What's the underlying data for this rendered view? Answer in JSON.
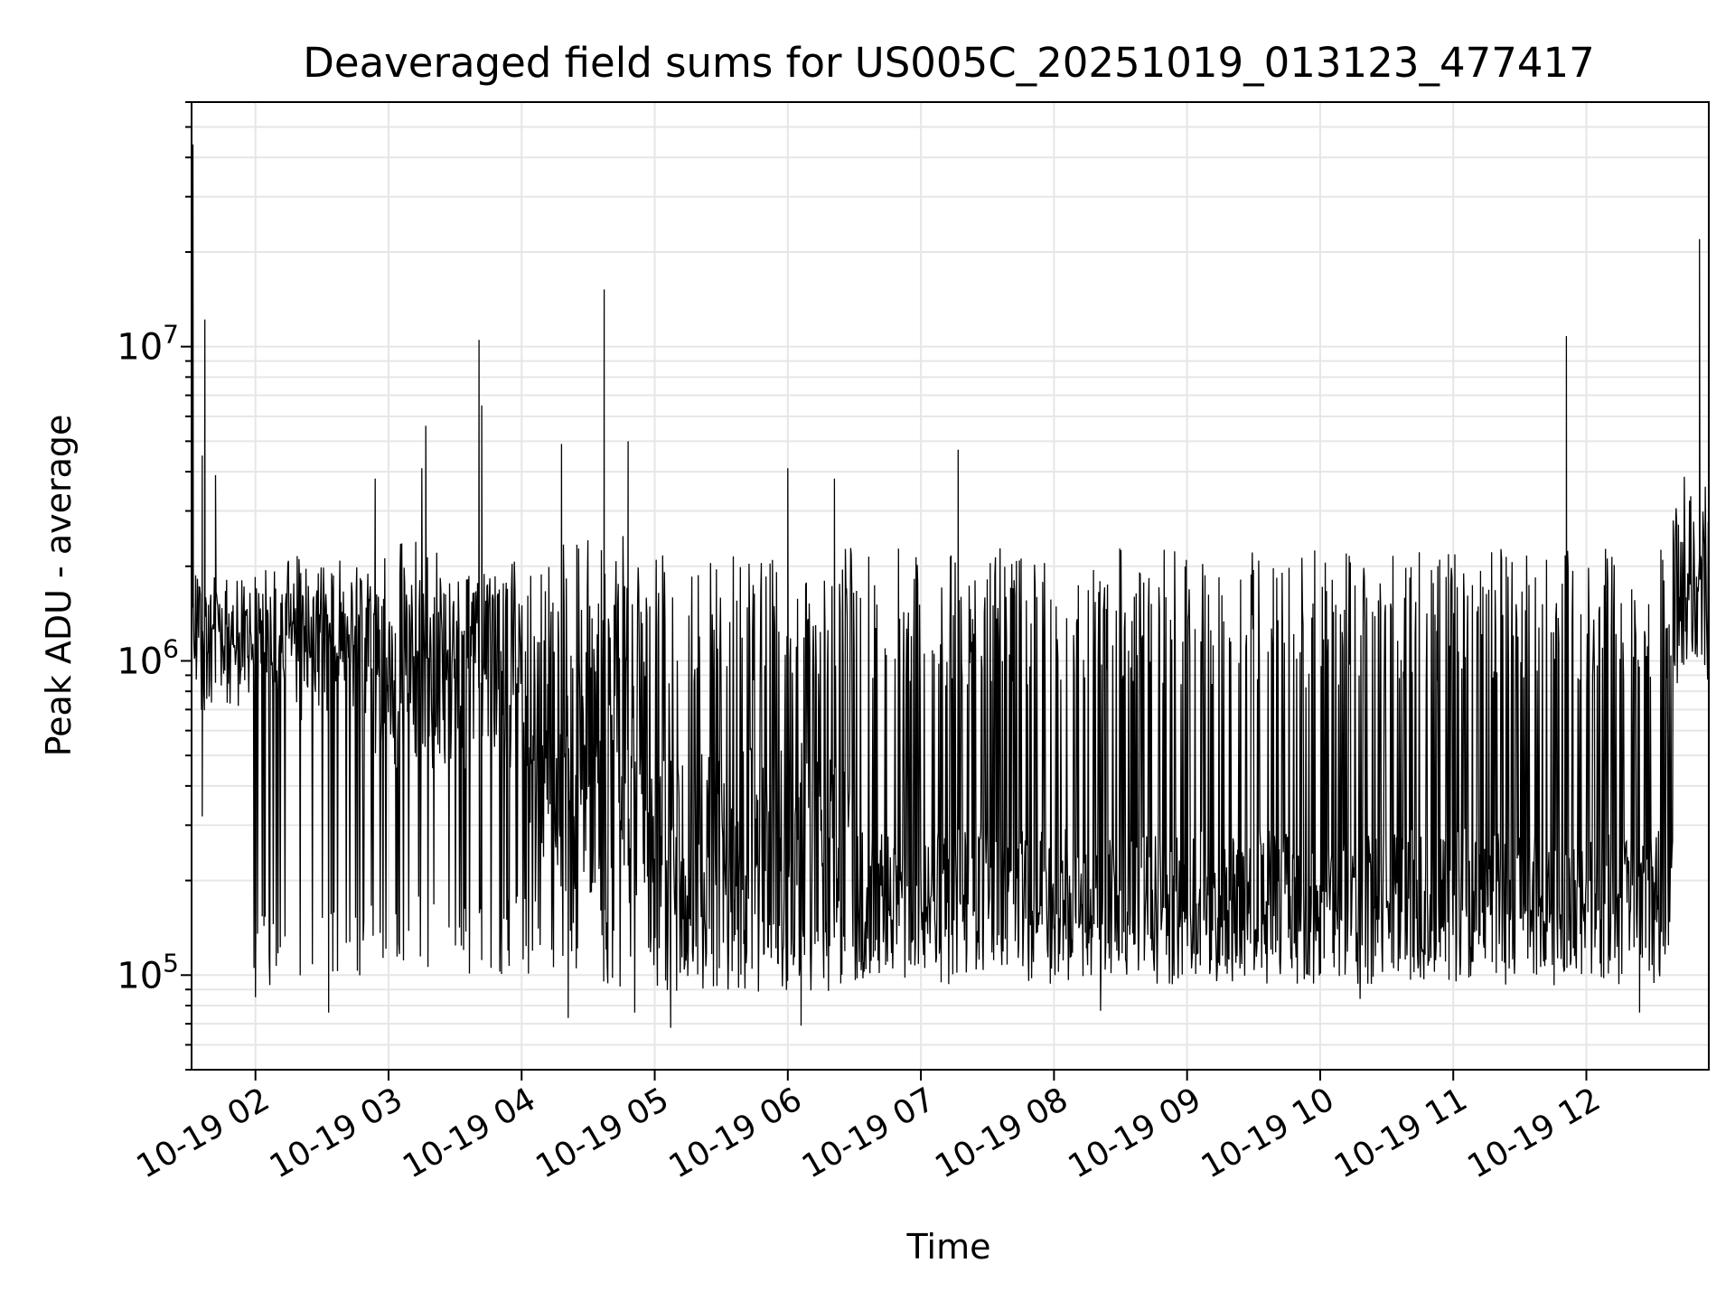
{
  "chart_data": {
    "type": "line",
    "title": "Deaveraged field sums for US005C_20251019_013123_477417",
    "xlabel": "Time",
    "ylabel": "Peak ADU - average",
    "yscale": "log",
    "ylim": [
      50000,
      60000000
    ],
    "xlim_hours": [
      1.52,
      12.92
    ],
    "x_tick_labels": [
      "10-19 02",
      "10-19 03",
      "10-19 04",
      "10-19 05",
      "10-19 06",
      "10-19 07",
      "10-19 08",
      "10-19 09",
      "10-19 10",
      "10-19 11",
      "10-19 12"
    ],
    "x_tick_hours": [
      2,
      3,
      4,
      5,
      6,
      7,
      8,
      9,
      10,
      11,
      12
    ],
    "y_tick_labels": [
      {
        "base": "10",
        "exp": "5",
        "value": 100000
      },
      {
        "base": "10",
        "exp": "6",
        "value": 1000000
      },
      {
        "base": "10",
        "exp": "7",
        "value": 10000000
      }
    ],
    "grid": true,
    "line_color": "#000000",
    "grid_color": "#e6e6e6",
    "series": [
      {
        "name": "Peak ADU - average",
        "segments": [
          {
            "from": 1.52,
            "to": 1.98,
            "base": 1400000,
            "spread": 0.12,
            "high": 1900000,
            "low": 700000
          },
          {
            "from": 1.98,
            "to": 2.8,
            "base": 1300000,
            "spread": 0.22,
            "high": 1800000,
            "low": 90000
          },
          {
            "from": 2.8,
            "to": 4.0,
            "base": 900000,
            "spread": 0.3,
            "high": 2500000,
            "low": 100000
          },
          {
            "from": 4.0,
            "to": 4.95,
            "base": 400000,
            "spread": 0.4,
            "high": 2500000,
            "low": 90000
          },
          {
            "from": 4.95,
            "to": 6.5,
            "base": 220000,
            "spread": 0.4,
            "high": 2300000,
            "low": 90000
          },
          {
            "from": 6.5,
            "to": 12.65,
            "base": 165000,
            "spread": 0.25,
            "high": 2300000,
            "low": 95000
          },
          {
            "from": 12.65,
            "to": 12.92,
            "base": 1700000,
            "spread": 0.25,
            "high": 4000000,
            "low": 700000
          }
        ],
        "spikes": [
          {
            "t": 1.53,
            "v": 44000000
          },
          {
            "t": 1.6,
            "v": 4500000
          },
          {
            "t": 1.6,
            "v": 320000
          },
          {
            "t": 1.62,
            "v": 12200000
          },
          {
            "t": 1.7,
            "v": 3900000
          },
          {
            "t": 2.0,
            "v": 85000
          },
          {
            "t": 2.55,
            "v": 76000
          },
          {
            "t": 2.9,
            "v": 3800000
          },
          {
            "t": 3.25,
            "v": 4100000
          },
          {
            "t": 3.28,
            "v": 5600000
          },
          {
            "t": 3.68,
            "v": 10500000
          },
          {
            "t": 3.7,
            "v": 6500000
          },
          {
            "t": 4.3,
            "v": 4900000
          },
          {
            "t": 4.35,
            "v": 73000
          },
          {
            "t": 4.62,
            "v": 15200000
          },
          {
            "t": 4.8,
            "v": 5000000
          },
          {
            "t": 4.85,
            "v": 76000
          },
          {
            "t": 5.12,
            "v": 68000
          },
          {
            "t": 6.0,
            "v": 4100000
          },
          {
            "t": 6.1,
            "v": 69000
          },
          {
            "t": 6.35,
            "v": 3800000
          },
          {
            "t": 7.28,
            "v": 4700000
          },
          {
            "t": 8.35,
            "v": 77000
          },
          {
            "t": 10.3,
            "v": 84000
          },
          {
            "t": 11.85,
            "v": 10800000
          },
          {
            "t": 12.4,
            "v": 76000
          },
          {
            "t": 12.85,
            "v": 22000000
          }
        ]
      }
    ]
  }
}
